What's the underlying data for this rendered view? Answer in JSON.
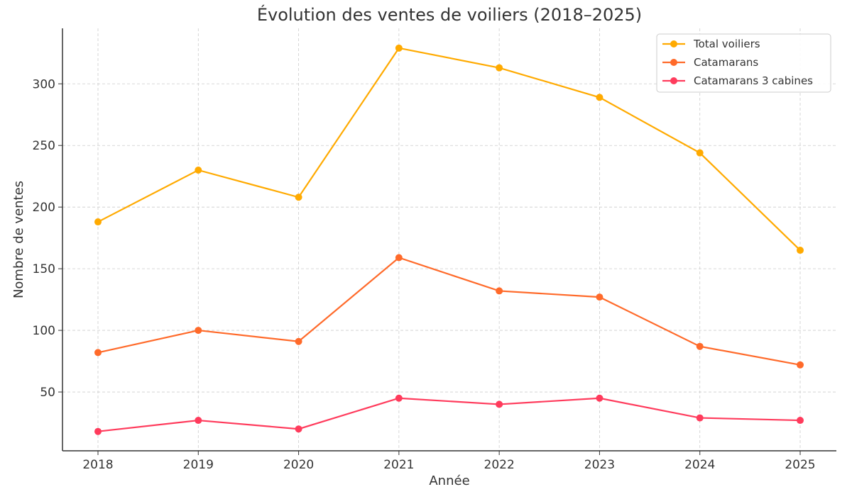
{
  "chart_data": {
    "type": "line",
    "title": "Évolution des ventes de voiliers (2018–2025)",
    "xlabel": "Année",
    "ylabel": "Nombre de ventes",
    "x": [
      "2018",
      "2019",
      "2020",
      "2021",
      "2022",
      "2023",
      "2024",
      "2025"
    ],
    "yticks": [
      50,
      100,
      150,
      200,
      250,
      300
    ],
    "ylim": [
      2.3,
      345
    ],
    "grid": true,
    "legend_position": "top-right",
    "series": [
      {
        "name": "Total voiliers",
        "color": "#FFAA00",
        "values": [
          188,
          230,
          208,
          329,
          313,
          289,
          244,
          165
        ]
      },
      {
        "name": "Catamarans",
        "color": "#FF6A2A",
        "values": [
          82,
          100,
          91,
          159,
          132,
          127,
          87,
          72
        ]
      },
      {
        "name": "Catamarans 3 cabines",
        "color": "#FF3B5C",
        "values": [
          18,
          27,
          20,
          45,
          40,
          45,
          29,
          27
        ]
      }
    ]
  }
}
